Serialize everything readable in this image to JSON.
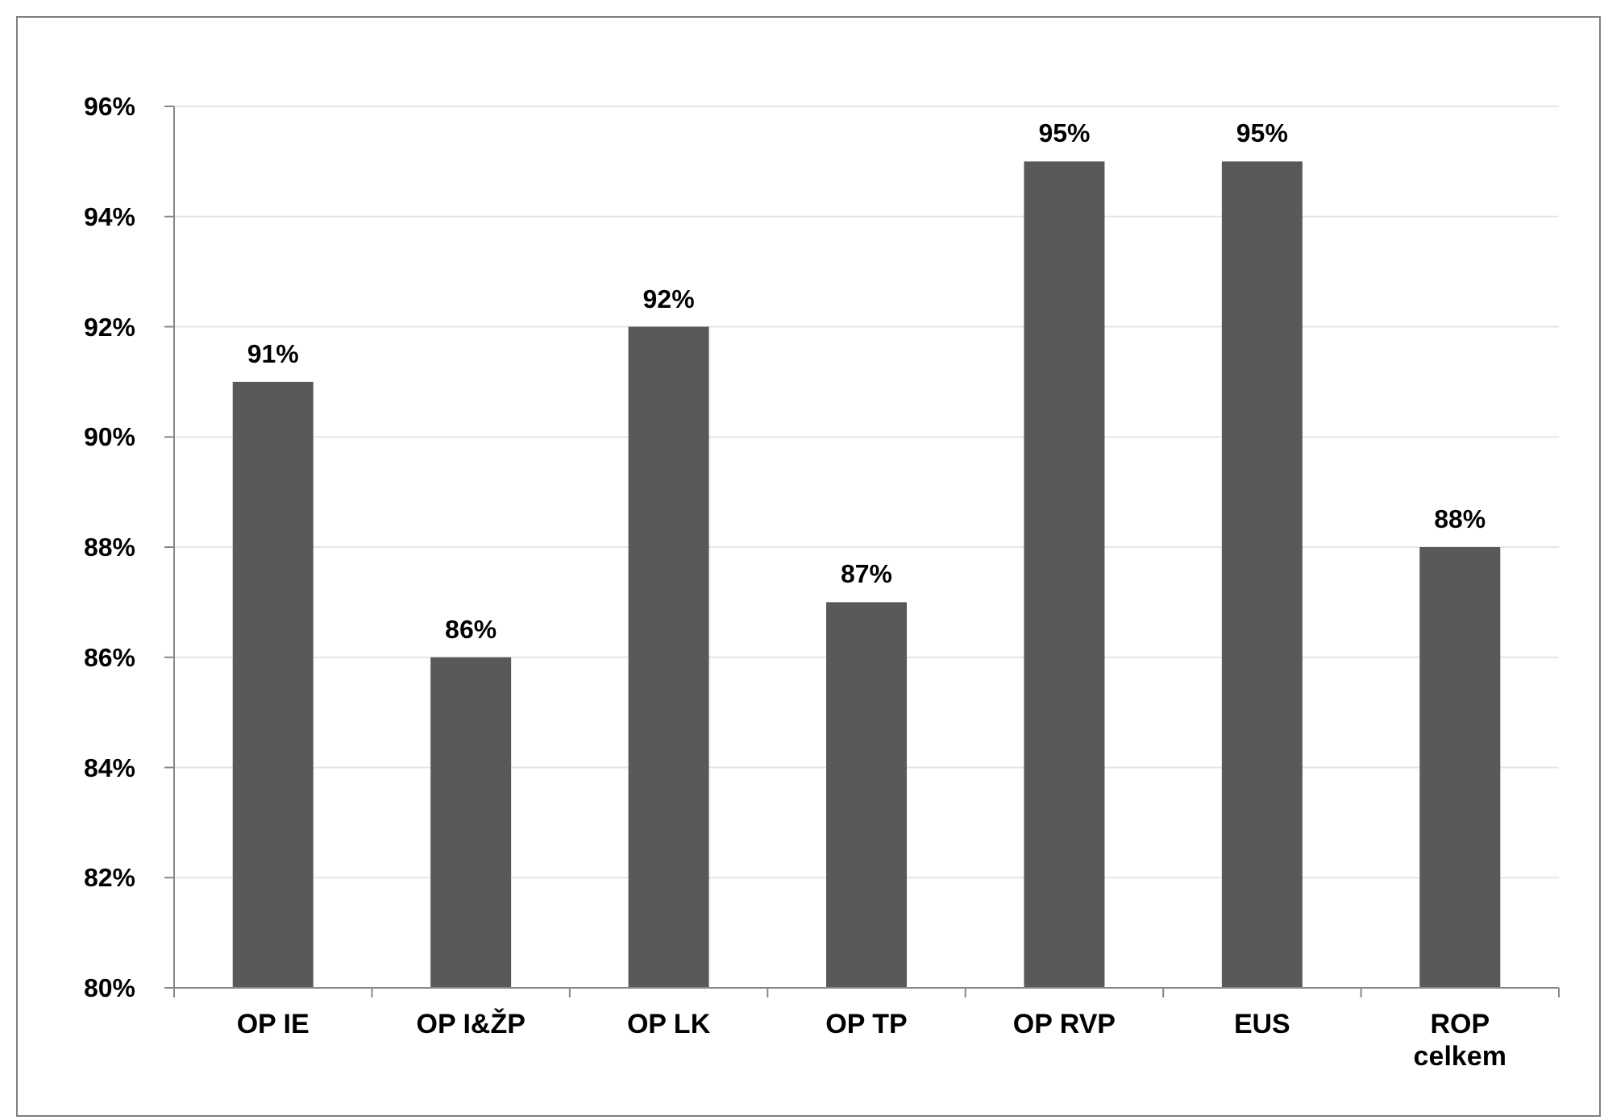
{
  "chart_data": {
    "type": "bar",
    "categories": [
      "OP IE",
      "OP I&ŽP",
      "OP LK",
      "OP TP",
      "OP RVP",
      "EUS",
      "ROP celkem"
    ],
    "values": [
      91,
      86,
      92,
      87,
      95,
      95,
      88
    ],
    "value_labels": [
      "91%",
      "86%",
      "92%",
      "87%",
      "95%",
      "95%",
      "88%"
    ],
    "color": "#595959",
    "ylim": [
      80,
      96
    ],
    "yticks": [
      {
        "value": 80,
        "label": "80%"
      },
      {
        "value": 82,
        "label": "82%"
      },
      {
        "value": 84,
        "label": "84%"
      },
      {
        "value": 86,
        "label": "86%"
      },
      {
        "value": 88,
        "label": "88%"
      },
      {
        "value": 90,
        "label": "90%"
      },
      {
        "value": 92,
        "label": "92%"
      },
      {
        "value": 94,
        "label": "94%"
      },
      {
        "value": 96,
        "label": "96%"
      }
    ],
    "grid": "y"
  }
}
